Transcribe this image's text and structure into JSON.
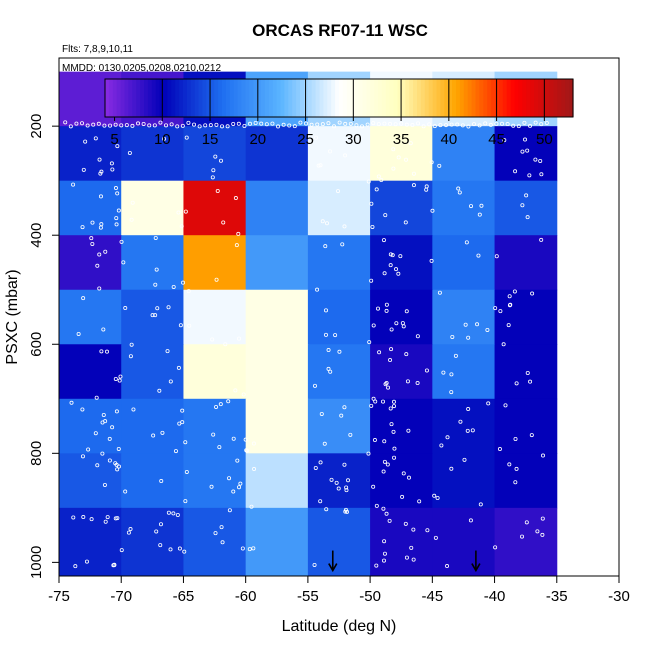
{
  "chart_data": {
    "type": "heatmap",
    "title": "ORCAS RF07-11 WSC",
    "subtitle_flights": "Flts: 7,8,9,10,11",
    "subtitle_dates": "MMDD: 0130,0205,0208,0210,0212",
    "xlabel": "Latitude (deg N)",
    "ylabel": "PSXC (mbar)",
    "xlim": [
      -75,
      -30
    ],
    "ylim": [
      1025,
      75
    ],
    "xticks": [
      -75,
      -70,
      -65,
      -60,
      -55,
      -50,
      -45,
      -40,
      -35,
      -30
    ],
    "yticks": [
      200,
      400,
      600,
      800,
      1000
    ],
    "colorbar": {
      "range": [
        4,
        53
      ],
      "ticks": [
        5,
        10,
        15,
        20,
        25,
        30,
        35,
        40,
        45,
        50
      ],
      "boundaries": [
        4,
        10,
        15,
        20,
        25,
        30,
        35,
        40,
        45,
        50,
        53
      ],
      "stops": [
        "#8a2be2",
        "#0000b8",
        "#1e6ef0",
        "#5ab4ff",
        "#ffffff",
        "#ffffc0",
        "#ffa500",
        "#ff0000",
        "#a01818"
      ]
    },
    "lat_bins": [
      -75,
      -70,
      -65,
      -60,
      -55,
      -50,
      -45,
      -40,
      -35
    ],
    "pressure_bins": [
      100,
      200,
      300,
      400,
      500,
      600,
      700,
      800,
      900,
      1000
    ],
    "values": [
      [
        6,
        7,
        11,
        21,
        25,
        28,
        27,
        25
      ],
      [
        12,
        13,
        14,
        13,
        28,
        32,
        18,
        10
      ],
      [
        16,
        31,
        49,
        18,
        27,
        14,
        17,
        15
      ],
      [
        8,
        17,
        41,
        20,
        17,
        11,
        16,
        9
      ],
      [
        17,
        15,
        28,
        31,
        16,
        10,
        18,
        10
      ],
      [
        10,
        15,
        32,
        31,
        17,
        9,
        17,
        10
      ],
      [
        16,
        16,
        17,
        31,
        19,
        10,
        11,
        10
      ],
      [
        15,
        16,
        17,
        26,
        12,
        10,
        11,
        10
      ],
      [
        12,
        13,
        15,
        20,
        15,
        9,
        9,
        8
      ]
    ],
    "arrow_latitudes": [
      -53,
      -41.5
    ],
    "arrow_pressure": 1015
  }
}
